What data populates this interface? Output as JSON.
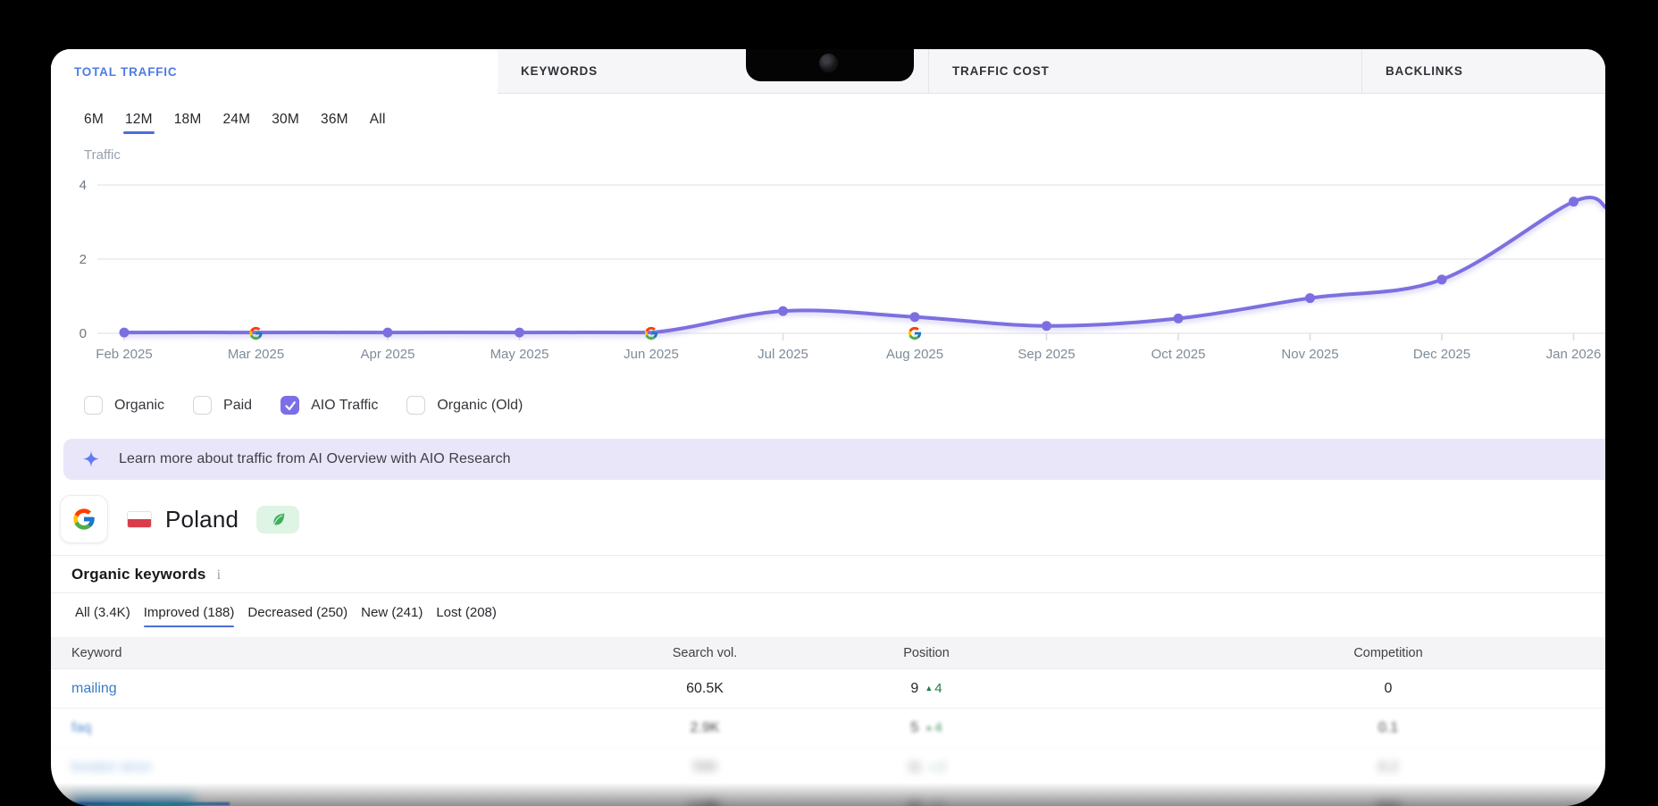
{
  "tabs": [
    {
      "label": "TOTAL TRAFFIC",
      "active": true
    },
    {
      "label": "KEYWORDS",
      "active": false
    },
    {
      "label": "TRAFFIC COST",
      "active": false
    },
    {
      "label": "BACKLINKS",
      "active": false
    }
  ],
  "time_ranges": {
    "options": [
      "6M",
      "12M",
      "18M",
      "24M",
      "30M",
      "36M",
      "All"
    ],
    "active": "12M"
  },
  "chart_data": {
    "type": "line",
    "ylabel": "Traffic",
    "x": [
      "Feb 2025",
      "Mar 2025",
      "Apr 2025",
      "May 2025",
      "Jun 2025",
      "Jul 2025",
      "Aug 2025",
      "Sep 2025",
      "Oct 2025",
      "Nov 2025",
      "Dec 2025",
      "Jan 2026"
    ],
    "series": [
      {
        "name": "AIO Traffic",
        "values": [
          0.02,
          0.02,
          0.02,
          0.02,
          0.02,
          0.6,
          0.44,
          0.2,
          0.4,
          0.95,
          1.45,
          3.55
        ]
      }
    ],
    "google_update_markers": [
      "Mar 2025",
      "Jun 2025",
      "Aug 2025"
    ],
    "ylim": [
      0,
      4
    ],
    "yticks": [
      0,
      2,
      4
    ],
    "grid": true,
    "line_color": "#7b6fe0"
  },
  "legend_checkboxes": [
    {
      "label": "Organic",
      "checked": false
    },
    {
      "label": "Paid",
      "checked": false
    },
    {
      "label": "AIO Traffic",
      "checked": true
    },
    {
      "label": "Organic (Old)",
      "checked": false
    }
  ],
  "banner": {
    "text": "Learn more about traffic from AI Overview with AIO Research"
  },
  "profile": {
    "search_engine": "Google",
    "country": "Poland"
  },
  "keywords_section": {
    "title": "Organic keywords",
    "filter_tabs": [
      {
        "label": "All (3.4K)",
        "active": false
      },
      {
        "label": "Improved (188)",
        "active": true
      },
      {
        "label": "Decreased (250)",
        "active": false
      },
      {
        "label": "New (241)",
        "active": false
      },
      {
        "label": "Lost (208)",
        "active": false
      }
    ],
    "table": {
      "headers": [
        "Keyword",
        "Search vol.",
        "Position",
        "Competition"
      ],
      "rows": [
        {
          "keyword": "mailing",
          "search_vol": "60.5K",
          "position": "9",
          "change": "4",
          "competition": "0",
          "blur": 0,
          "highlight": false
        },
        {
          "keyword": "faq",
          "search_vol": "2.9K",
          "position": "5",
          "change": "4",
          "competition": "0.1",
          "blur": 1,
          "highlight": false
        },
        {
          "keyword": "kreator stron",
          "search_vol": "590",
          "position": "11",
          "change": "2",
          "competition": "0.2",
          "blur": 2,
          "highlight": false
        },
        {
          "keyword": "email marketing",
          "search_vol": "1.2K",
          "position": "8",
          "change": "3",
          "competition": "0.4",
          "blur": 3,
          "highlight": true
        }
      ]
    }
  },
  "colors": {
    "accent_blue": "#4d7ce2",
    "underline_blue": "#4a6fd8",
    "line_purple": "#7b6fe0",
    "checkbox_purple": "#7b6fe8",
    "banner_bg": "#e9e6fa",
    "positive_green": "#1e7e45",
    "link_blue": "#3a7bc8",
    "leaf_green": "#3fae5c",
    "flag_red": "#da3c4a"
  }
}
